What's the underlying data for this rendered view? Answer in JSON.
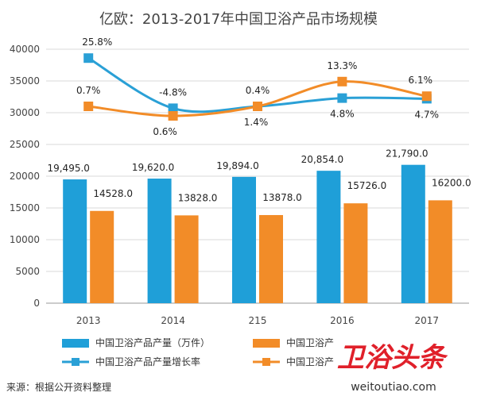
{
  "title": "亿欧：2013-2017年中国卫浴产品市场规模",
  "source": "来源：根据公开资料整理",
  "watermark": {
    "main": "卫浴头条",
    "url": "weitoutiao.com"
  },
  "colors": {
    "bar1": "#1f9fd8",
    "bar2": "#f28c28",
    "line1": "#2aa0d6",
    "line2": "#f28c28",
    "grid": "#d9d9d9"
  },
  "chart_data": {
    "type": "bar",
    "categories": [
      "2013",
      "2014",
      "215",
      "2016",
      "2017"
    ],
    "ylim": [
      0,
      40000
    ],
    "yticks": [
      0,
      5000,
      10000,
      15000,
      20000,
      25000,
      30000,
      35000,
      40000
    ],
    "grid": true,
    "legend": "bottom",
    "series": [
      {
        "name": "中国卫浴产品产量（万件）",
        "type": "bar",
        "values": [
          19495.0,
          19620.0,
          19894.0,
          20854.0,
          21790.0
        ],
        "labels": [
          "19,495.0",
          "19,620.0",
          "19,894.0",
          "20,854.0",
          "21,790.0"
        ]
      },
      {
        "name": "中国卫浴产",
        "type": "bar",
        "values": [
          14528.0,
          13828.0,
          13878.0,
          15726.0,
          16200.0
        ],
        "labels": [
          "14528.0",
          "13828.0",
          "13878.0",
          "15726.0",
          "16200.0"
        ]
      },
      {
        "name": "中国卫浴产品产量增长率",
        "type": "line",
        "plotted": [
          38600,
          30700,
          31000,
          32300,
          32200
        ],
        "labels": [
          "25.8%",
          "-4.8%",
          "1.4%",
          "4.8%",
          "4.7%"
        ]
      },
      {
        "name": "中国卫浴产",
        "type": "line",
        "plotted": [
          31000,
          29500,
          31000,
          34900,
          32600
        ],
        "labels": [
          "0.7%",
          "0.6%",
          "0.4%",
          "13.3%",
          "6.1%"
        ]
      }
    ]
  }
}
